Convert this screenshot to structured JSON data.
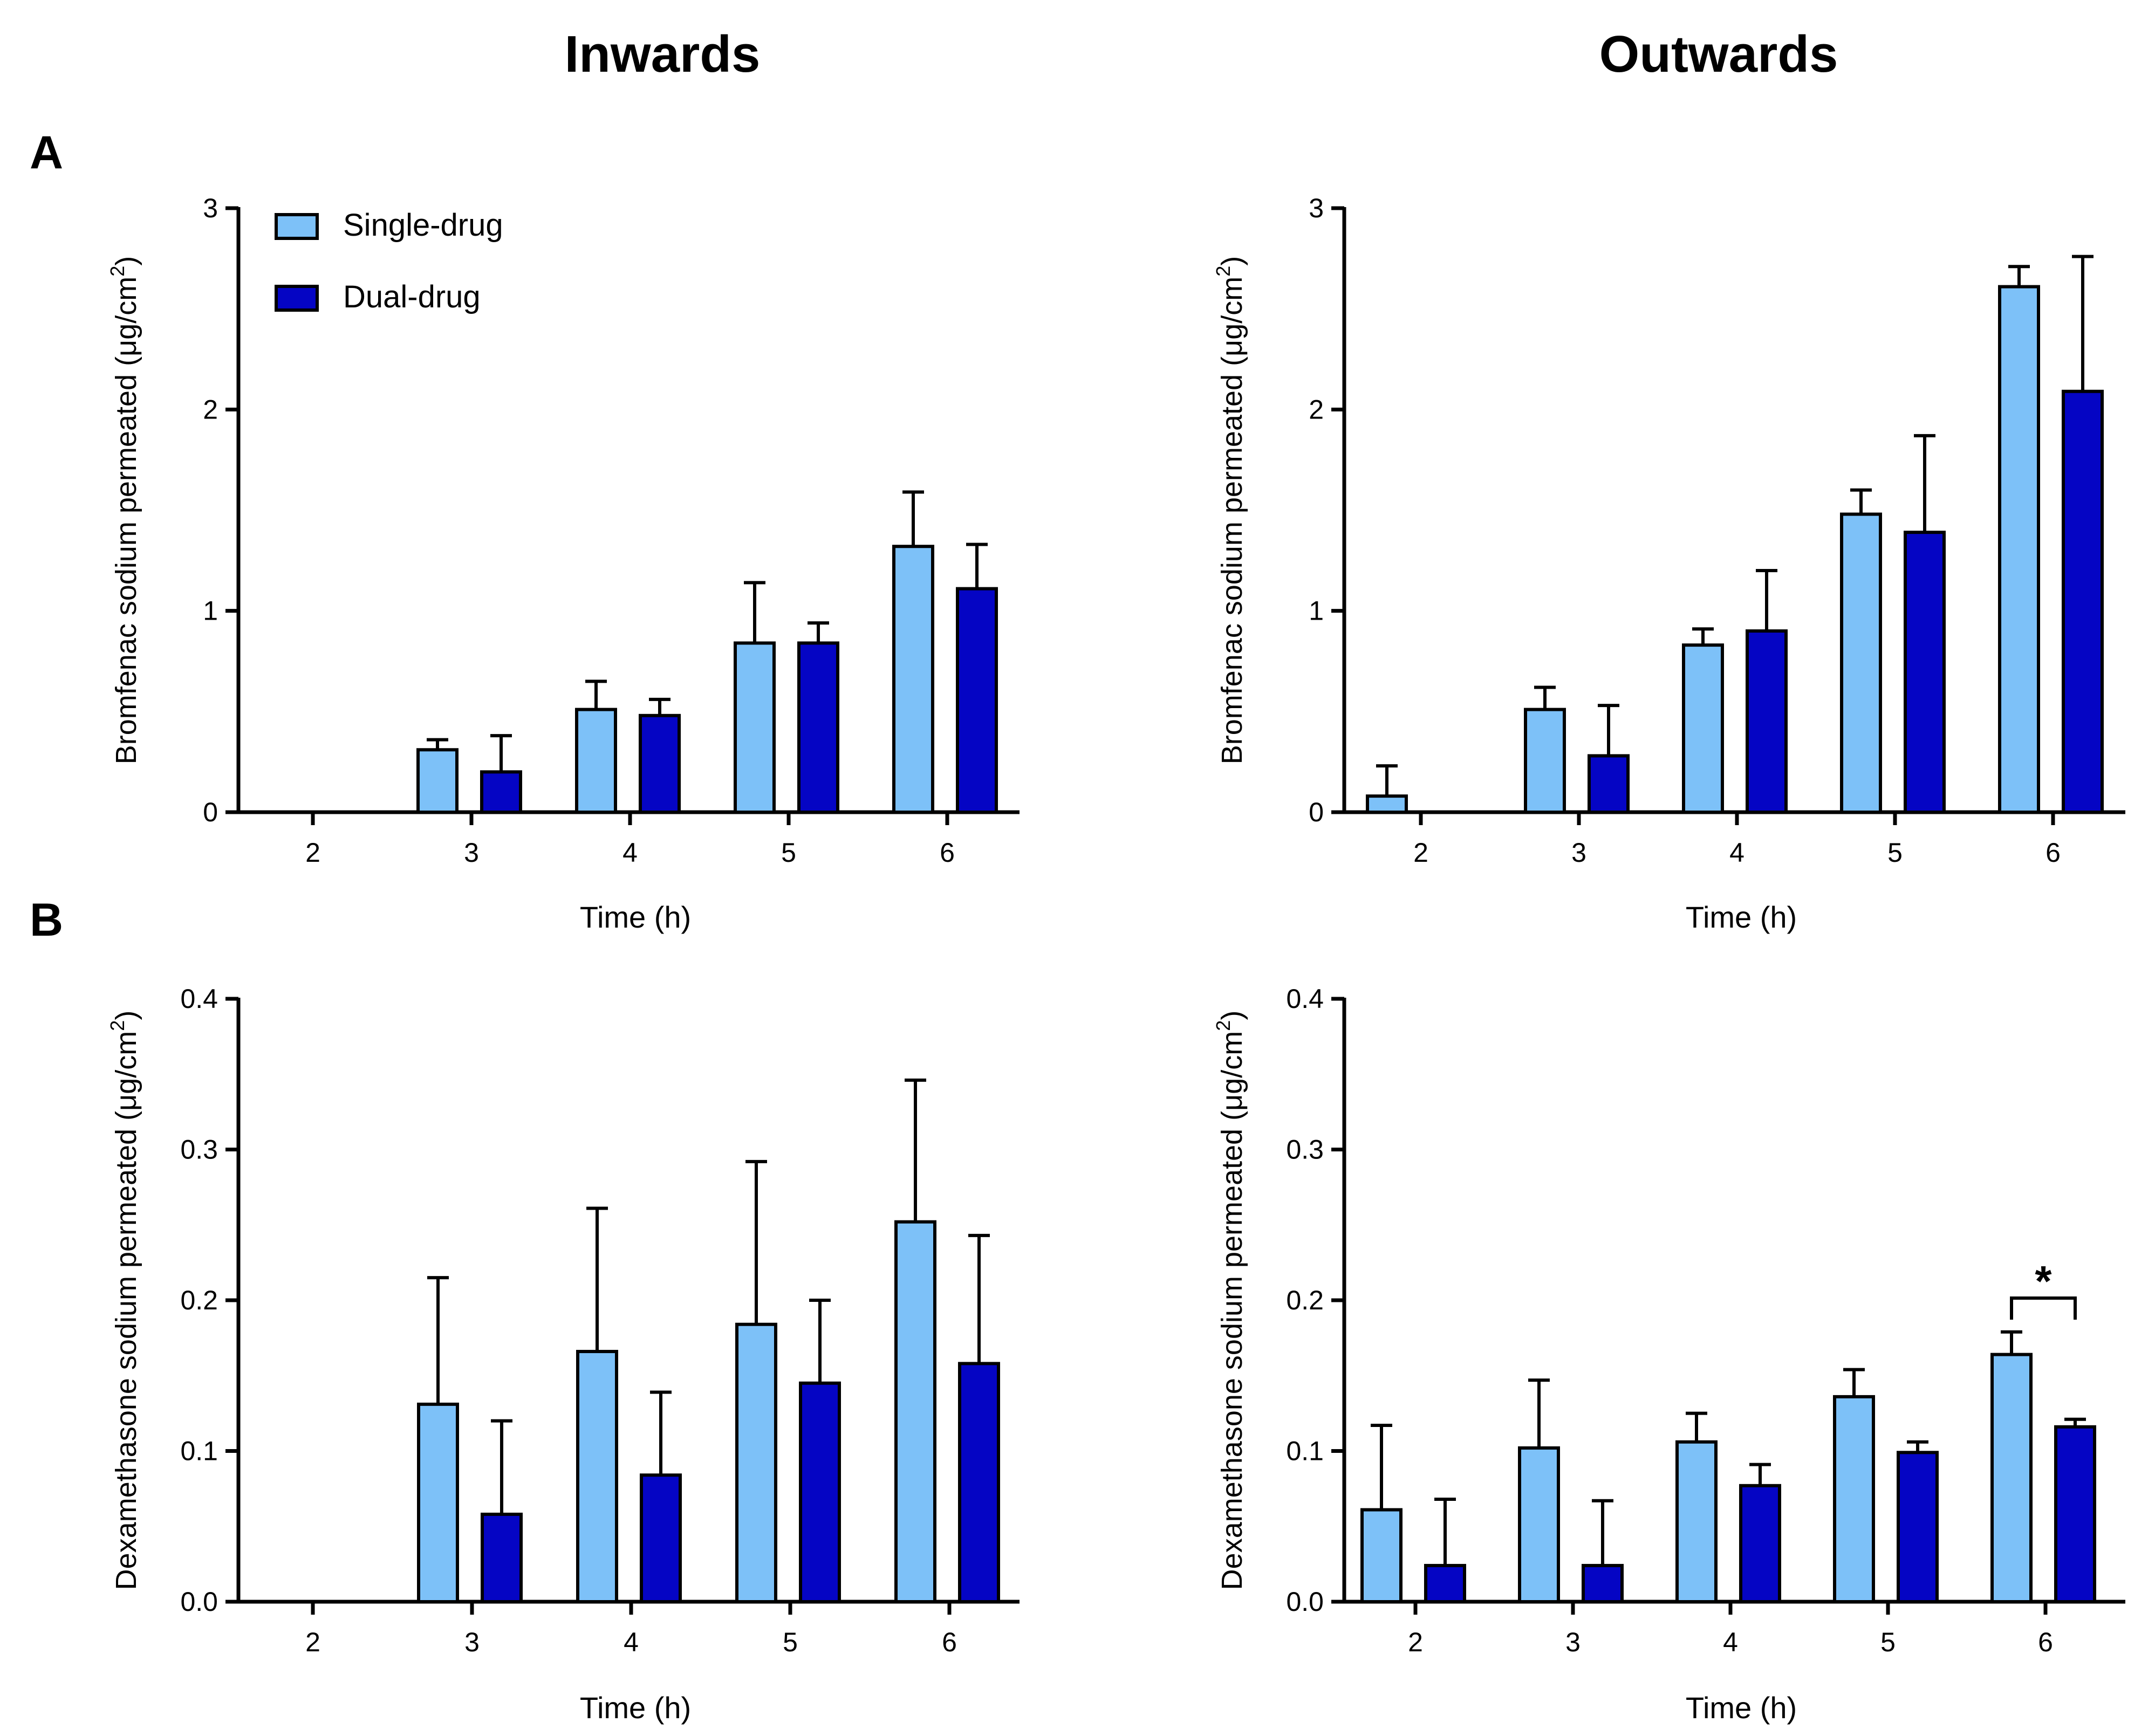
{
  "figure": {
    "column_titles": [
      "Inwards",
      "Outwards"
    ],
    "row_labels": [
      "A",
      "B"
    ],
    "legend": [
      {
        "label": "Single-drug",
        "color": "#7DC1F8"
      },
      {
        "label": "Dual-drug",
        "color": "#0505C4"
      }
    ]
  },
  "chart_data": [
    {
      "id": "A-inwards",
      "type": "bar",
      "title": "Inwards",
      "xlabel": "Time (h)",
      "ylabel_main": "Bromfenac sodium permeated (μg/cm",
      "ylabel_sup": "2",
      "ylabel_end": ")",
      "ylim": [
        0,
        3
      ],
      "yticks": [
        0,
        1,
        2,
        3
      ],
      "ytick_labels": [
        "0",
        "1",
        "2",
        "3"
      ],
      "categories": [
        "2",
        "3",
        "4",
        "5",
        "6"
      ],
      "series": [
        {
          "name": "Single-drug",
          "color": "#7DC1F8",
          "values": [
            null,
            0.31,
            0.51,
            0.84,
            1.32
          ],
          "errors": [
            null,
            0.05,
            0.14,
            0.3,
            0.27
          ]
        },
        {
          "name": "Dual-drug",
          "color": "#0505C4",
          "values": [
            null,
            0.2,
            0.48,
            0.84,
            1.11
          ],
          "errors": [
            null,
            0.18,
            0.08,
            0.1,
            0.22
          ]
        }
      ],
      "legend": true,
      "significance": []
    },
    {
      "id": "A-outwards",
      "type": "bar",
      "title": "Outwards",
      "xlabel": "Time (h)",
      "ylabel_main": "Bromfenac sodium permeated (μg/cm",
      "ylabel_sup": "2",
      "ylabel_end": ")",
      "ylim": [
        0,
        3
      ],
      "yticks": [
        0,
        1,
        2,
        3
      ],
      "ytick_labels": [
        "0",
        "1",
        "2",
        "3"
      ],
      "categories": [
        "2",
        "3",
        "4",
        "5",
        "6"
      ],
      "series": [
        {
          "name": "Single-drug",
          "color": "#7DC1F8",
          "values": [
            0.08,
            0.51,
            0.83,
            1.48,
            2.61
          ],
          "errors": [
            0.15,
            0.11,
            0.08,
            0.12,
            0.1
          ]
        },
        {
          "name": "Dual-drug",
          "color": "#0505C4",
          "values": [
            null,
            0.28,
            0.9,
            1.39,
            2.09
          ],
          "errors": [
            null,
            0.25,
            0.3,
            0.48,
            0.67
          ]
        }
      ],
      "legend": false,
      "significance": []
    },
    {
      "id": "B-inwards",
      "type": "bar",
      "title": "Inwards",
      "xlabel": "Time (h)",
      "ylabel_main": "Dexamethasone sodium permeated (μg/cm",
      "ylabel_sup": "2",
      "ylabel_end": ")",
      "ylim": [
        0,
        0.4
      ],
      "yticks": [
        0,
        0.1,
        0.2,
        0.3,
        0.4
      ],
      "ytick_labels": [
        "0.0",
        "0.1",
        "0.2",
        "0.3",
        "0.4"
      ],
      "categories": [
        "2",
        "3",
        "4",
        "5",
        "6"
      ],
      "series": [
        {
          "name": "Single-drug",
          "color": "#7DC1F8",
          "values": [
            null,
            0.131,
            0.166,
            0.184,
            0.252
          ],
          "errors": [
            null,
            0.084,
            0.095,
            0.108,
            0.094
          ]
        },
        {
          "name": "Dual-drug",
          "color": "#0505C4",
          "values": [
            null,
            0.058,
            0.084,
            0.145,
            0.158
          ],
          "errors": [
            null,
            0.062,
            0.055,
            0.055,
            0.085
          ]
        }
      ],
      "legend": false,
      "significance": []
    },
    {
      "id": "B-outwards",
      "type": "bar",
      "title": "Outwards",
      "xlabel": "Time (h)",
      "ylabel_main": "Dexamethasone sodium permeated (μg/cm",
      "ylabel_sup": "2",
      "ylabel_end": ")",
      "ylim": [
        0,
        0.4
      ],
      "yticks": [
        0,
        0.1,
        0.2,
        0.3,
        0.4
      ],
      "ytick_labels": [
        "0.0",
        "0.1",
        "0.2",
        "0.3",
        "0.4"
      ],
      "categories": [
        "2",
        "3",
        "4",
        "5",
        "6"
      ],
      "series": [
        {
          "name": "Single-drug",
          "color": "#7DC1F8",
          "values": [
            0.061,
            0.102,
            0.106,
            0.136,
            0.164
          ],
          "errors": [
            0.056,
            0.045,
            0.019,
            0.018,
            0.015
          ]
        },
        {
          "name": "Dual-drug",
          "color": "#0505C4",
          "values": [
            0.024,
            0.024,
            0.077,
            0.099,
            0.116
          ],
          "errors": [
            0.044,
            0.043,
            0.014,
            0.007,
            0.005
          ]
        }
      ],
      "legend": false,
      "significance": [
        {
          "category": "6",
          "label": "*",
          "value": 0.2
        }
      ]
    }
  ]
}
